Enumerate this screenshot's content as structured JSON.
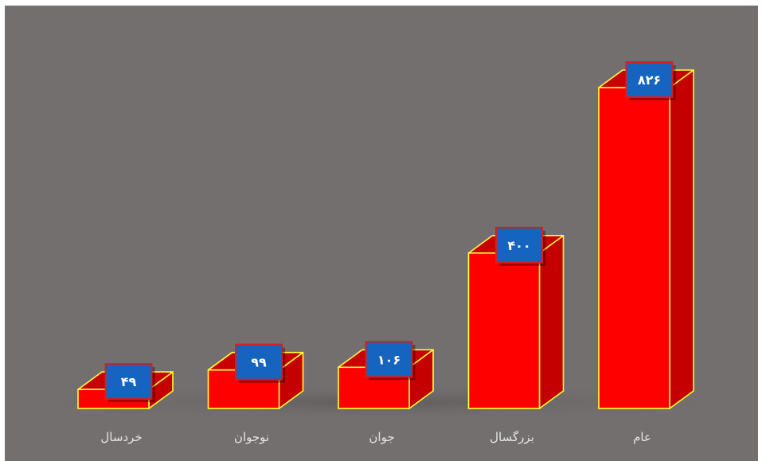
{
  "chart_data": {
    "type": "bar",
    "categories": [
      "خردسال",
      "نوجوان",
      "جوان",
      "بزرگسال",
      "عام"
    ],
    "values": [
      49,
      99,
      106,
      400,
      826
    ],
    "value_labels": [
      "۴۹",
      "۹۹",
      "۱۰۶",
      "۴۰۰",
      "۸۲۶"
    ],
    "title": "",
    "xlabel": "",
    "ylabel": "",
    "ylim": [
      0,
      826
    ],
    "grid": false,
    "legend": "none",
    "style": "3d-column",
    "colors": {
      "background": "#736f6e",
      "bar_front": "#ff0000",
      "bar_side": "#c40000",
      "bar_top": "#c80000",
      "bar_outline": "#ffff33",
      "label_box": "#1565c0",
      "label_box_border": "#d32020",
      "label_text": "#ffffff",
      "category_text": "#e6e6e6"
    }
  }
}
